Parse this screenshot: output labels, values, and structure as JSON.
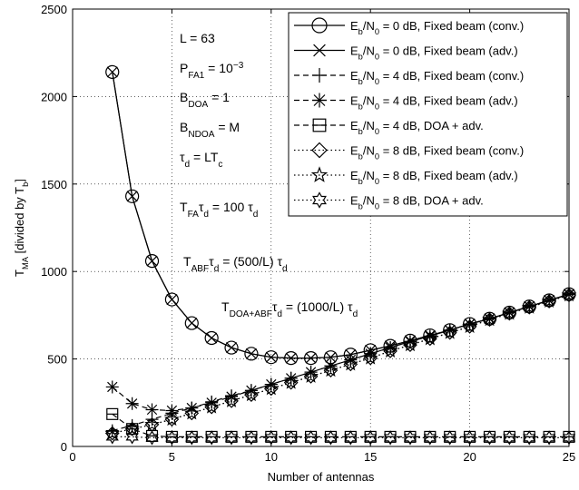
{
  "chart_data": {
    "type": "line",
    "title": "",
    "xlabel": "Number of antennas",
    "ylabel": "T_MA [divided by T_b]",
    "xlim": [
      0,
      25
    ],
    "ylim": [
      0,
      2500
    ],
    "xticks": [
      0,
      5,
      10,
      15,
      20,
      25
    ],
    "yticks": [
      0,
      500,
      1000,
      1500,
      2000,
      2500
    ],
    "grid": true,
    "legend_position": "top-right",
    "annotations": [
      {
        "label": "L = 63"
      },
      {
        "label": "P_FA1 = 10^-3"
      },
      {
        "label": "B_DOA = 1"
      },
      {
        "label": "B_NDOA = M"
      },
      {
        "label": "τ_d = LT_c"
      },
      {
        "label": "T_FAτ_d = 100 τ_d"
      },
      {
        "label": "T_ABFτ_d = (500/L) τ_d"
      },
      {
        "label": "T_DOA+ABFτ_d = (1000/L) τ_d"
      }
    ],
    "x": [
      2,
      3,
      4,
      5,
      6,
      7,
      8,
      9,
      10,
      11,
      12,
      13,
      14,
      15,
      16,
      17,
      18,
      19,
      20,
      21,
      22,
      23,
      24,
      25
    ],
    "series": [
      {
        "name": "Eb/N0 = 0 dB, Fixed beam (conv.)",
        "marker": "circle",
        "dash": "solid",
        "values": [
          2140,
          1430,
          1060,
          840,
          705,
          620,
          565,
          530,
          510,
          505,
          505,
          510,
          525,
          550,
          575,
          605,
          635,
          665,
          700,
          730,
          765,
          800,
          835,
          870
        ]
      },
      {
        "name": "Eb/N0 = 0 dB, Fixed beam (adv.)",
        "marker": "x",
        "dash": "solid",
        "values": [
          2140,
          1430,
          1060,
          840,
          705,
          620,
          565,
          530,
          510,
          505,
          505,
          510,
          525,
          550,
          575,
          605,
          635,
          665,
          700,
          730,
          765,
          800,
          835,
          870
        ]
      },
      {
        "name": "Eb/N0 = 4 dB, Fixed beam (conv.)",
        "marker": "plus",
        "dash": "dashed",
        "values": [
          90,
          120,
          155,
          190,
          220,
          255,
          290,
          320,
          355,
          390,
          425,
          460,
          495,
          530,
          565,
          600,
          630,
          665,
          700,
          730,
          765,
          800,
          835,
          870
        ]
      },
      {
        "name": "Eb/N0 = 4 dB, Fixed beam (adv.)",
        "marker": "asterisk",
        "dash": "dashed",
        "values": [
          340,
          245,
          210,
          205,
          220,
          250,
          285,
          320,
          355,
          390,
          425,
          460,
          495,
          530,
          565,
          600,
          630,
          665,
          700,
          730,
          765,
          800,
          835,
          870
        ]
      },
      {
        "name": "Eb/N0 = 4 dB, DOA + adv.",
        "marker": "square",
        "dash": "dashed",
        "values": [
          185,
          100,
          60,
          55,
          55,
          55,
          55,
          55,
          55,
          55,
          55,
          55,
          55,
          55,
          55,
          55,
          55,
          55,
          55,
          55,
          55,
          55,
          55,
          55
        ]
      },
      {
        "name": "Eb/N0 = 8 dB, Fixed beam (conv.)",
        "marker": "diamond",
        "dash": "dotted",
        "values": [
          75,
          100,
          125,
          155,
          190,
          225,
          260,
          295,
          330,
          365,
          400,
          435,
          470,
          505,
          545,
          580,
          615,
          650,
          685,
          725,
          760,
          795,
          830,
          865
        ]
      },
      {
        "name": "Eb/N0 = 8 dB, Fixed beam (adv.)",
        "marker": "star",
        "dash": "dotted",
        "values": [
          75,
          100,
          125,
          155,
          190,
          225,
          260,
          295,
          330,
          365,
          400,
          435,
          470,
          505,
          545,
          580,
          615,
          650,
          685,
          725,
          760,
          795,
          830,
          865
        ]
      },
      {
        "name": "Eb/N0 = 8 dB, DOA + adv.",
        "marker": "hexagram",
        "dash": "dotted",
        "values": [
          55,
          55,
          50,
          50,
          50,
          50,
          50,
          50,
          50,
          50,
          50,
          50,
          50,
          50,
          50,
          50,
          50,
          50,
          50,
          50,
          50,
          50,
          50,
          50
        ]
      }
    ],
    "legend_labels": [
      {
        "main": "E",
        "sub1": "b",
        "mid": "/N",
        "sub2": "0",
        "tail": " = 0 dB, Fixed beam (conv.)"
      },
      {
        "main": "E",
        "sub1": "b",
        "mid": "/N",
        "sub2": "0",
        "tail": " = 0 dB, Fixed beam (adv.)"
      },
      {
        "main": "E",
        "sub1": "b",
        "mid": "/N",
        "sub2": "0",
        "tail": " = 4 dB, Fixed beam (conv.)"
      },
      {
        "main": "E",
        "sub1": "b",
        "mid": "/N",
        "sub2": "0",
        "tail": " = 4 dB, Fixed beam (adv.)"
      },
      {
        "main": "E",
        "sub1": "b",
        "mid": "/N",
        "sub2": "0",
        "tail": " = 4 dB, DOA + adv."
      },
      {
        "main": "E",
        "sub1": "b",
        "mid": "/N",
        "sub2": "0",
        "tail": " = 8 dB, Fixed beam (conv.)"
      },
      {
        "main": "E",
        "sub1": "b",
        "mid": "/N",
        "sub2": "0",
        "tail": " = 8 dB, Fixed beam (adv.)"
      },
      {
        "main": "E",
        "sub1": "b",
        "mid": "/N",
        "sub2": "0",
        "tail": " = 8 dB, DOA + adv."
      }
    ],
    "ylabel_parts": {
      "main": "T",
      "sub": "MA",
      "mid": " [divided by T",
      "sub2": "b",
      "tail": "]"
    },
    "annotation_parts": [
      {
        "segs": [
          [
            "L = 63",
            ""
          ]
        ]
      },
      {
        "segs": [
          [
            "P",
            ""
          ],
          [
            "FA1",
            "sub"
          ],
          [
            " = 10",
            ""
          ],
          [
            "−3",
            "sup"
          ]
        ]
      },
      {
        "segs": [
          [
            "B",
            ""
          ],
          [
            "DOA",
            "sub"
          ],
          [
            " = 1",
            ""
          ]
        ]
      },
      {
        "segs": [
          [
            "B",
            ""
          ],
          [
            "NDOA",
            "sub"
          ],
          [
            " = M",
            ""
          ]
        ]
      },
      {
        "segs": [
          [
            "τ",
            ""
          ],
          [
            "d",
            "sub"
          ],
          [
            " = LT",
            ""
          ],
          [
            "c",
            "sub"
          ]
        ]
      },
      {
        "segs": [
          [
            "T",
            ""
          ],
          [
            "FA",
            "sub"
          ],
          [
            "τ",
            ""
          ],
          [
            "d",
            "sub"
          ],
          [
            " = 100 τ",
            ""
          ],
          [
            "d",
            "sub"
          ]
        ]
      },
      {
        "segs": [
          [
            "T",
            ""
          ],
          [
            "ABF",
            "sub"
          ],
          [
            "τ",
            ""
          ],
          [
            "d",
            "sub"
          ],
          [
            " = (500/L) τ",
            ""
          ],
          [
            "d",
            "sub"
          ]
        ]
      },
      {
        "segs": [
          [
            "T",
            ""
          ],
          [
            "DOA+ABF",
            "sub"
          ],
          [
            "τ",
            ""
          ],
          [
            "d",
            "sub"
          ],
          [
            " = (1000/L) τ",
            ""
          ],
          [
            "d",
            "sub"
          ]
        ]
      }
    ]
  }
}
